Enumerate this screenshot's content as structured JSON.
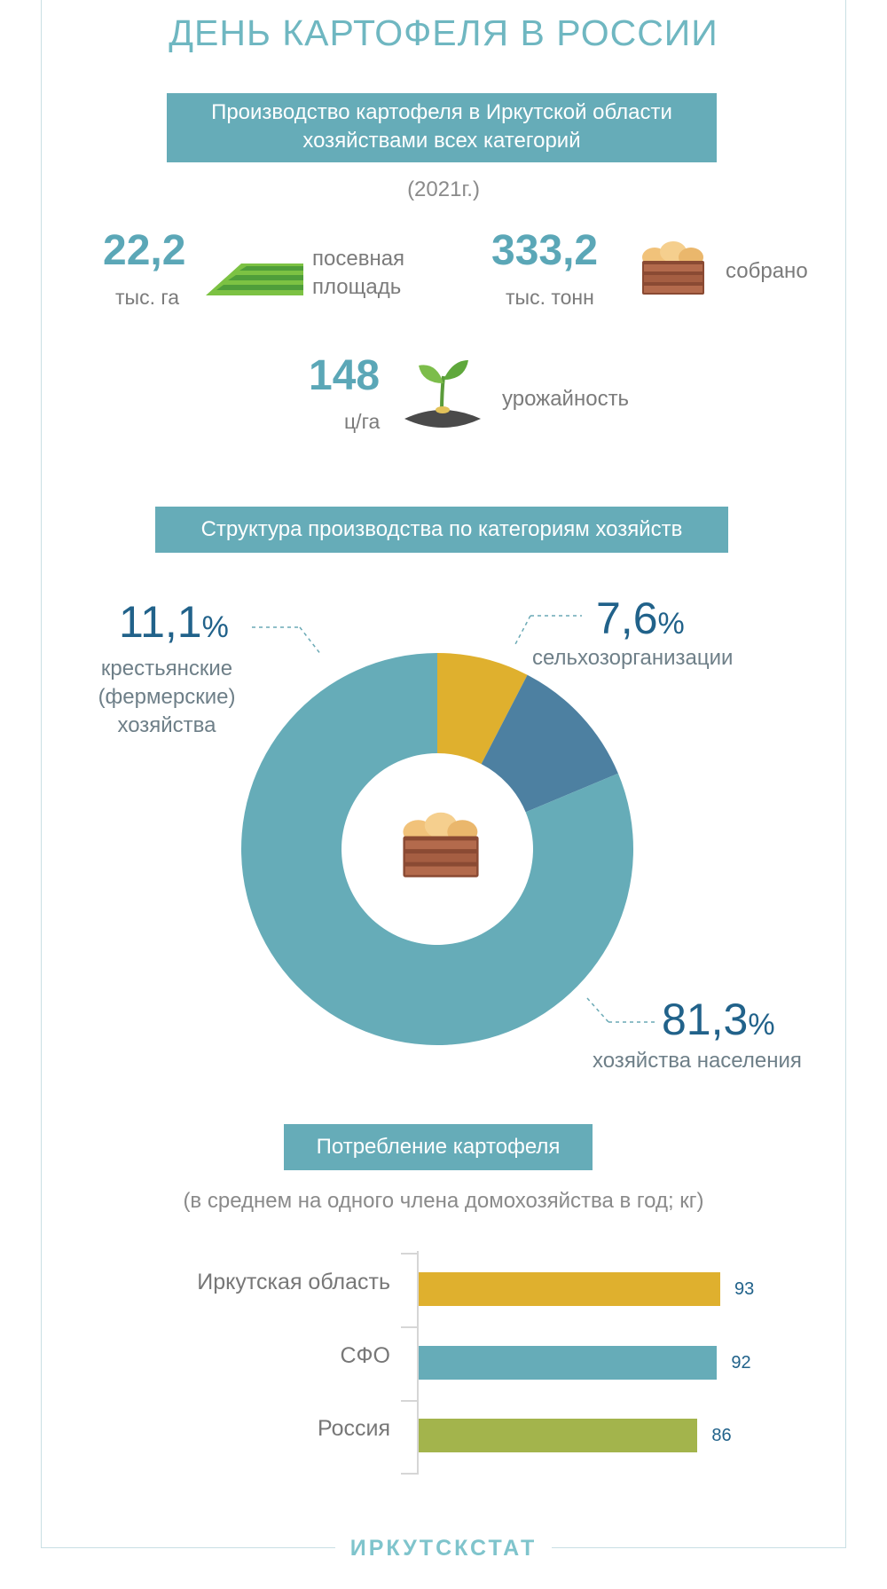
{
  "title": "ДЕНЬ КАРТОФЕЛЯ В РОССИИ",
  "production": {
    "banner_line1": "Производство картофеля в Иркутской области",
    "banner_line2": "хозяйствами всех категорий",
    "year": "(2021г.)",
    "area_value": "22,2",
    "area_unit": "тыс. га",
    "area_label_line1": "посевная",
    "area_label_line2": "площадь",
    "harvest_value": "333,2",
    "harvest_unit": "тыс. тонн",
    "harvest_label": "собрано",
    "yield_value": "148",
    "yield_unit": "ц/га",
    "yield_label": "урожайность"
  },
  "structure": {
    "banner": "Структура производства по категориям хозяйств",
    "seg1_value": "11,1",
    "seg1_line1": "крестьянские",
    "seg1_line2": "(фермерские)",
    "seg1_line3": "хозяйства",
    "seg2_value": "7,6",
    "seg2_label": "сельхозорганизации",
    "seg3_value": "81,3",
    "seg3_label": "хозяйства населения",
    "pct_symbol": "%"
  },
  "consumption": {
    "banner": "Потребление картофеля",
    "subtitle": "(в среднем на одного члена домохозяйства в год; кг)"
  },
  "footer": "ИРКУТСКСТАТ",
  "colors": {
    "accent": "#66acb8",
    "farm": "#4d80a1",
    "agro": "#dfb02e",
    "households": "#66acb8",
    "russia": "#a3b44c"
  },
  "icons": [
    "field-icon",
    "potato-crate-icon",
    "sprout-icon"
  ],
  "chart_data": [
    {
      "type": "pie",
      "title": "Структура производства по категориям хозяйств",
      "categories": [
        "сельхозорганизации",
        "крестьянские (фермерские) хозяйства",
        "хозяйства населения"
      ],
      "values": [
        7.6,
        11.1,
        81.3
      ],
      "colors": [
        "#dfb02e",
        "#4d80a1",
        "#66acb8"
      ],
      "donut": true
    },
    {
      "type": "bar",
      "orientation": "horizontal",
      "title": "Потребление картофеля",
      "subtitle": "(в среднем на одного члена домохозяйства в год; кг)",
      "categories": [
        "Иркутская область",
        "СФО",
        "Россия"
      ],
      "values": [
        93,
        92,
        86
      ],
      "colors": [
        "#dfb02e",
        "#66acb8",
        "#a3b44c"
      ],
      "xlim": [
        0,
        100
      ]
    }
  ]
}
